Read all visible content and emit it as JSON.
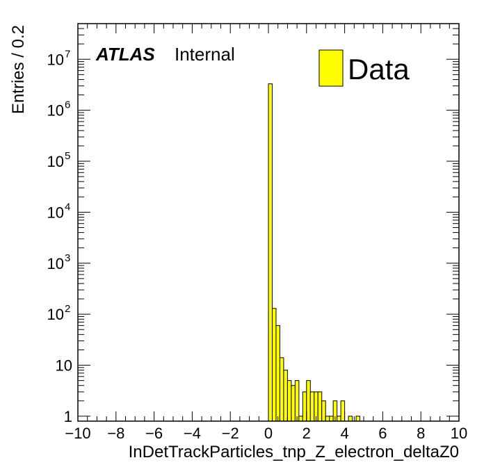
{
  "chart_data": {
    "type": "bar",
    "xlabel": "InDetTrackParticles_tnp_Z_electron_deltaZ0",
    "ylabel": "Entries / 0.2",
    "xlim": [
      -10,
      10
    ],
    "ylim": [
      0.8,
      50000000
    ],
    "yscale": "log",
    "xticks": [
      -10,
      -8,
      -6,
      -4,
      -2,
      0,
      2,
      4,
      6,
      8,
      10
    ],
    "xtick_labels": [
      "−10",
      "−8",
      "−6",
      "−4",
      "−2",
      "0",
      "2",
      "4",
      "6",
      "8",
      "10"
    ],
    "yticks": [
      {
        "value": 1,
        "label": "1"
      },
      {
        "value": 10,
        "label": "10"
      },
      {
        "value": 100,
        "label": "10",
        "exp": "2"
      },
      {
        "value": 1000,
        "label": "10",
        "exp": "3"
      },
      {
        "value": 10000,
        "label": "10",
        "exp": "4"
      },
      {
        "value": 100000,
        "label": "10",
        "exp": "5"
      },
      {
        "value": 1000000,
        "label": "10",
        "exp": "6"
      },
      {
        "value": 10000000,
        "label": "10",
        "exp": "7"
      }
    ],
    "bin_width": 0.2,
    "bins": [
      {
        "x": 0.0,
        "value": 3300000
      },
      {
        "x": 0.2,
        "value": 130
      },
      {
        "x": 0.4,
        "value": 60
      },
      {
        "x": 0.6,
        "value": 14
      },
      {
        "x": 0.8,
        "value": 8
      },
      {
        "x": 1.0,
        "value": 5
      },
      {
        "x": 1.2,
        "value": 4
      },
      {
        "x": 1.4,
        "value": 5
      },
      {
        "x": 1.6,
        "value": 1
      },
      {
        "x": 1.8,
        "value": 3
      },
      {
        "x": 2.0,
        "value": 5
      },
      {
        "x": 2.2,
        "value": 3
      },
      {
        "x": 2.4,
        "value": 3
      },
      {
        "x": 2.6,
        "value": 3
      },
      {
        "x": 2.8,
        "value": 2
      },
      {
        "x": 3.0,
        "value": 1
      },
      {
        "x": 3.2,
        "value": 1
      },
      {
        "x": 3.4,
        "value": 2
      },
      {
        "x": 3.6,
        "value": 1
      },
      {
        "x": 3.8,
        "value": 2
      },
      {
        "x": 4.2,
        "value": 1
      },
      {
        "x": 4.6,
        "value": 1
      }
    ],
    "fill_color": "#ffff00",
    "legend": {
      "label": "Data",
      "placement": "top-right"
    },
    "annotation": {
      "atlas": "ATLAS",
      "status": "Internal"
    }
  }
}
